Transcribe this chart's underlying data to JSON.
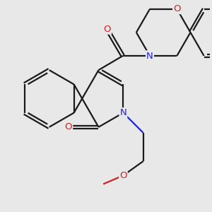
{
  "bg_color": "#e8e8e8",
  "bond_color": "#1a1a1a",
  "N_color": "#2222cc",
  "O_color": "#cc2222",
  "lw": 1.6,
  "figsize": [
    3.0,
    3.0
  ],
  "dpi": 100,
  "xlim": [
    -4.2,
    4.2
  ],
  "ylim": [
    -4.2,
    4.2
  ]
}
